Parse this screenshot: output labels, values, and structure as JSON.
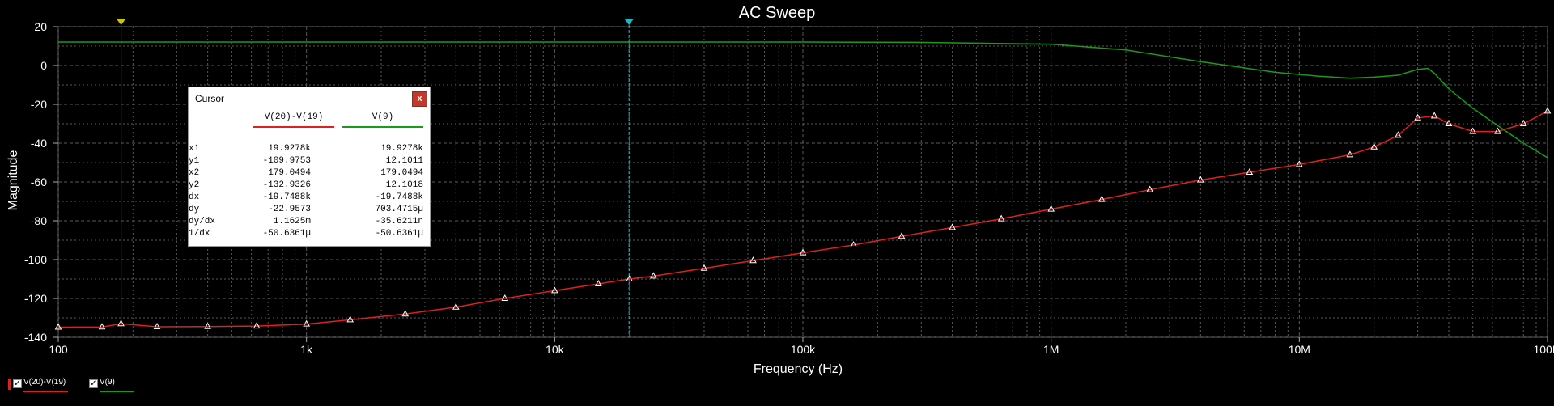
{
  "colors": {
    "series1": "#e0201b",
    "series2": "#1a9a1a",
    "cursor1": "#c8c800",
    "cursor2": "#19b8c8",
    "grid": "#5a5a5a"
  },
  "chart_data": {
    "type": "line",
    "title": "AC Sweep",
    "xlabel": "Frequency (Hz)",
    "ylabel": "Magnitude",
    "xscale": "log",
    "xlim": [
      100,
      100000000
    ],
    "ylim": [
      -140,
      20
    ],
    "grid": true,
    "x_ticks": [
      "100",
      "1k",
      "10k",
      "100k",
      "1M",
      "10M",
      "100M"
    ],
    "x_tick_values": [
      100,
      1000,
      10000,
      100000,
      1000000,
      10000000,
      100000000
    ],
    "y_ticks": [
      20,
      0,
      -20,
      -40,
      -60,
      -80,
      -100,
      -120,
      -140
    ],
    "series": [
      {
        "name": "V(20)-V(19)",
        "x": [
          100,
          150,
          179,
          250,
          400,
          630,
          1000,
          1500,
          2500,
          4000,
          6300,
          10000,
          15000,
          20000,
          25000,
          40000,
          63000,
          100000,
          160000,
          250000,
          400000,
          630000,
          1000000,
          1600000,
          2500000,
          4000000,
          6300000,
          10000000,
          16000000,
          20000000,
          25000000,
          30000000,
          35000000,
          40000000,
          50000000,
          63000000,
          80000000,
          100000000
        ],
        "y": [
          -134.8,
          -134.7,
          -133,
          -134.6,
          -134.5,
          -134.2,
          -133.2,
          -131,
          -128,
          -124.5,
          -120,
          -116,
          -112.5,
          -110,
          -108.5,
          -104.5,
          -100.5,
          -96.5,
          -92.5,
          -88,
          -83.5,
          -79,
          -74,
          -69,
          -64,
          -59,
          -55,
          -51,
          -46,
          -42,
          -36,
          -27,
          -26,
          -30,
          -34,
          -34,
          -30,
          -23.5
        ]
      },
      {
        "name": "V(9)",
        "x": [
          100,
          1000,
          10000,
          100000,
          300000,
          1000000,
          2000000,
          4000000,
          8000000,
          12000000,
          16000000,
          20000000,
          25000000,
          30000000,
          33000000,
          35000000,
          40000000,
          50000000,
          63000000,
          80000000,
          100000000
        ],
        "y": [
          12.1,
          12.1,
          12.1,
          12.1,
          11.9,
          11,
          8,
          2,
          -3.5,
          -5.5,
          -6.5,
          -6,
          -5,
          -2,
          -1.5,
          -4,
          -12,
          -22,
          -31,
          -40,
          -47.5
        ]
      }
    ],
    "cursors": [
      {
        "name": "cursor-1",
        "x": 179.0494,
        "color": "#c8c800"
      },
      {
        "name": "cursor-2",
        "x": 19927.8,
        "color": "#19b8c8"
      }
    ]
  },
  "cursor_panel": {
    "title": "Cursor",
    "close_label": "x",
    "columns": [
      "V(20)-V(19)",
      "V(9)"
    ],
    "rows": [
      {
        "label": "x1",
        "v1": "19.9278k",
        "v2": "19.9278k"
      },
      {
        "label": "y1",
        "v1": "-109.9753",
        "v2": "12.1011"
      },
      {
        "label": "x2",
        "v1": "179.0494",
        "v2": "179.0494"
      },
      {
        "label": "y2",
        "v1": "-132.9326",
        "v2": "12.1018"
      },
      {
        "label": "dx",
        "v1": "-19.7488k",
        "v2": "-19.7488k"
      },
      {
        "label": "dy",
        "v1": "-22.9573",
        "v2": "703.4715µ"
      },
      {
        "label": "dy/dx",
        "v1": "1.1625m",
        "v2": "-35.6211n"
      },
      {
        "label": "1/dx",
        "v1": "-50.6361µ",
        "v2": "-50.6361µ"
      }
    ]
  },
  "legend": [
    {
      "label": "V(20)-V(19)",
      "checked": "✓",
      "color": "#e0201b"
    },
    {
      "label": "V(9)",
      "checked": "✓",
      "color": "#1a9a1a"
    }
  ]
}
